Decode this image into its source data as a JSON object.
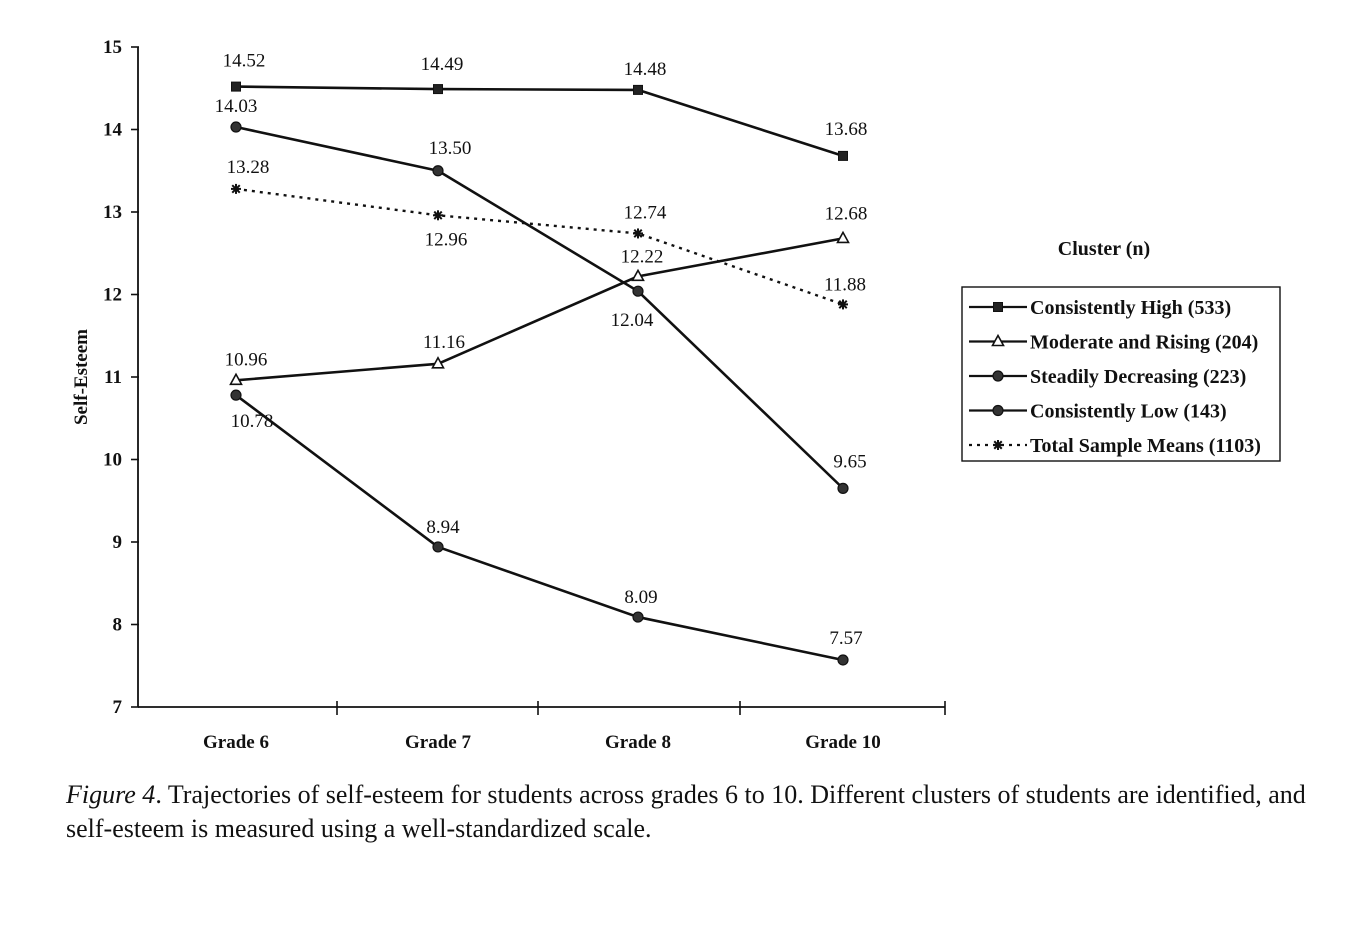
{
  "chart_data": {
    "type": "line",
    "title": "",
    "xlabel": "",
    "ylabel": "Self-Esteem",
    "ylim": [
      7,
      15
    ],
    "y_ticks": [
      "7",
      "8",
      "9",
      "10",
      "11",
      "12",
      "13",
      "14",
      "15"
    ],
    "categories": [
      "Grade 6",
      "Grade 7",
      "Grade 8",
      "Grade 10"
    ],
    "grid": false,
    "legend_title": "Cluster (n)",
    "legend_position": "right",
    "series": [
      {
        "name": "Consistently High (533)",
        "marker": "square",
        "dash": "solid",
        "values": [
          14.52,
          14.49,
          14.48,
          13.68
        ],
        "labels": [
          "14.52",
          "14.49",
          "14.48",
          "13.68"
        ]
      },
      {
        "name": "Moderate and Rising (204)",
        "marker": "triangle",
        "dash": "solid",
        "values": [
          10.96,
          11.16,
          12.22,
          12.68
        ],
        "labels": [
          "10.96",
          "11.16",
          "12.22",
          "12.68"
        ]
      },
      {
        "name": "Steadily Decreasing (223)",
        "marker": "circle",
        "dash": "solid",
        "values": [
          14.03,
          13.5,
          12.04,
          9.65
        ],
        "labels": [
          "14.03",
          "13.50",
          "12.04",
          "9.65"
        ]
      },
      {
        "name": "Consistently Low (143)",
        "marker": "circle",
        "dash": "solid",
        "values": [
          10.78,
          8.94,
          8.09,
          7.57
        ],
        "labels": [
          "10.78",
          "8.94",
          "8.09",
          "7.57"
        ]
      },
      {
        "name": "Total Sample Means (1103)",
        "marker": "asterisk",
        "dash": "dotted",
        "values": [
          13.28,
          12.96,
          12.74,
          11.88
        ],
        "labels": [
          "13.28",
          "12.96",
          "12.74",
          "11.88"
        ]
      }
    ]
  },
  "caption": {
    "label": "Figure 4",
    "text": ". Trajectories of self-esteem for students across grades 6 to 10. Different clusters of students are identified, and self-esteem is measured using a well-standardized scale."
  }
}
